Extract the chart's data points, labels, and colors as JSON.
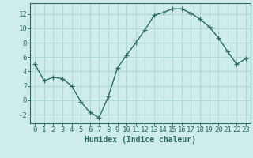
{
  "x": [
    0,
    1,
    2,
    3,
    4,
    5,
    6,
    7,
    8,
    9,
    10,
    11,
    12,
    13,
    14,
    15,
    16,
    17,
    18,
    19,
    20,
    21,
    22,
    23
  ],
  "y": [
    5,
    2.7,
    3.2,
    3.0,
    2.0,
    -0.2,
    -1.7,
    -2.4,
    0.5,
    4.5,
    6.3,
    8.0,
    9.8,
    11.8,
    12.2,
    12.7,
    12.7,
    12.1,
    11.3,
    10.2,
    8.7,
    6.8,
    5.0,
    5.8
  ],
  "line_color": "#2e6b5e",
  "marker": "+",
  "markersize": 4,
  "linewidth": 1.0,
  "bg_color": "#ceecea",
  "grid_color": "#b0d8d4",
  "xlabel": "Humidex (Indice chaleur)",
  "xlabel_fontsize": 7,
  "tick_fontsize": 6.5,
  "xlim": [
    -0.5,
    23.5
  ],
  "ylim": [
    -3.2,
    13.5
  ],
  "yticks": [
    -2,
    0,
    2,
    4,
    6,
    8,
    10,
    12
  ],
  "xticks": [
    0,
    1,
    2,
    3,
    4,
    5,
    6,
    7,
    8,
    9,
    10,
    11,
    12,
    13,
    14,
    15,
    16,
    17,
    18,
    19,
    20,
    21,
    22,
    23
  ]
}
